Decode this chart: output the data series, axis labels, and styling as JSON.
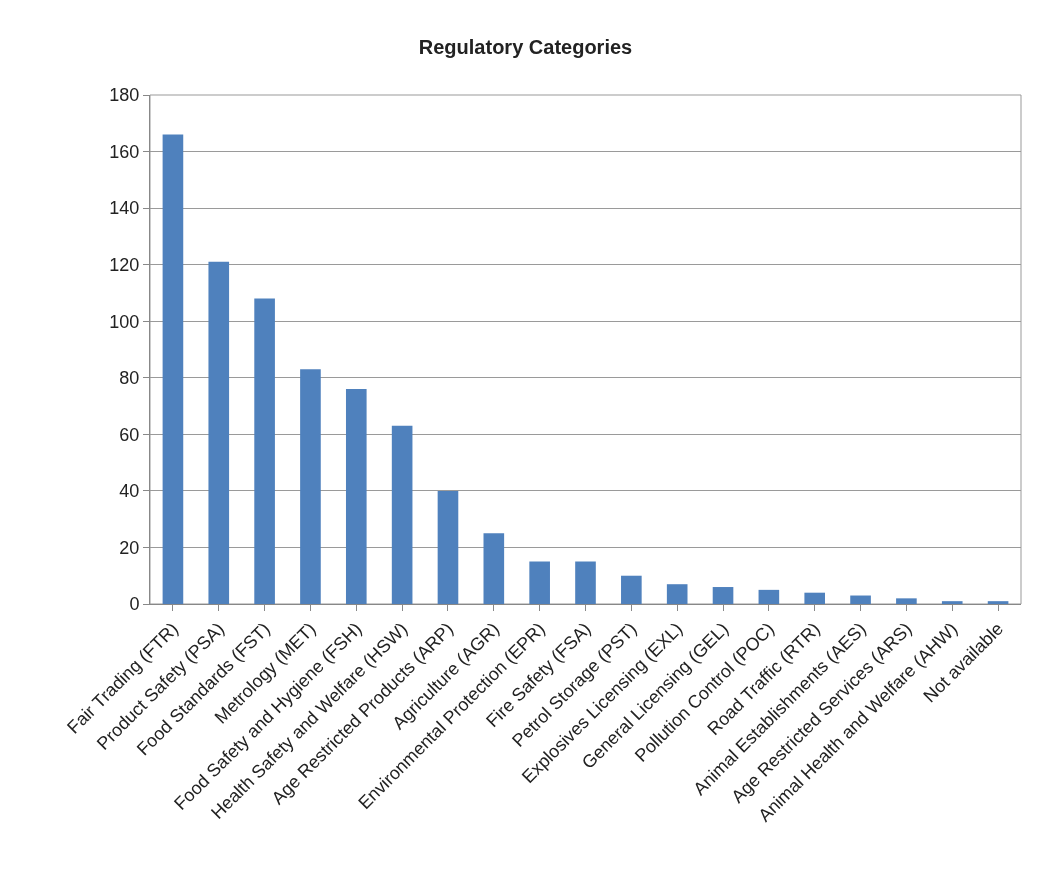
{
  "chart_data": {
    "type": "bar",
    "title": "Regulatory Categories",
    "categories": [
      "Fair Trading (FTR)",
      "Product Safety (PSA)",
      "Food Standards (FST)",
      "Metrology (MET)",
      "Food Safety and Hygiene (FSH)",
      "Health Safety and Welfare (HSW)",
      "Age Restricted Products (ARP)",
      "Agriculture (AGR)",
      "Environmental Protection (EPR)",
      "Fire Safety (FSA)",
      "Petrol Storage (PST)",
      "Explosives Licensing (EXL)",
      "General Licensing (GEL)",
      "Pollution Control (POC)",
      "Road Traffic (RTR)",
      "Animal Establishments (AES)",
      "Age Restricted Services (ARS)",
      "Animal Health and Welfare (AHW)",
      "Not available"
    ],
    "values": [
      166,
      121,
      108,
      83,
      76,
      63,
      40,
      25,
      15,
      15,
      10,
      7,
      6,
      5,
      4,
      3,
      2,
      1,
      1
    ],
    "color": "#4f81bd",
    "ylim": [
      0,
      180
    ],
    "yticks": [
      0,
      20,
      40,
      60,
      80,
      100,
      120,
      140,
      160,
      180
    ],
    "grid": "y"
  }
}
